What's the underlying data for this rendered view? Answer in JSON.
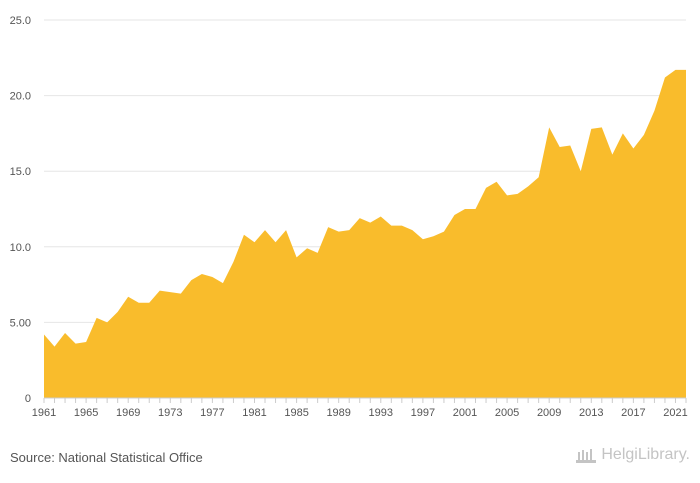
{
  "chart_data": {
    "type": "area",
    "color": "#f9bc2c",
    "x": [
      1961,
      1962,
      1963,
      1964,
      1965,
      1966,
      1967,
      1968,
      1969,
      1970,
      1971,
      1972,
      1973,
      1974,
      1975,
      1976,
      1977,
      1978,
      1979,
      1980,
      1981,
      1982,
      1983,
      1984,
      1985,
      1986,
      1987,
      1988,
      1989,
      1990,
      1991,
      1992,
      1993,
      1994,
      1995,
      1996,
      1997,
      1998,
      1999,
      2000,
      2001,
      2002,
      2003,
      2004,
      2005,
      2006,
      2007,
      2008,
      2009,
      2010,
      2011,
      2012,
      2013,
      2014,
      2015,
      2016,
      2017,
      2018,
      2019,
      2020,
      2021,
      2022
    ],
    "values": [
      4.2,
      3.4,
      4.3,
      3.6,
      3.7,
      5.3,
      5.0,
      5.7,
      6.7,
      6.3,
      6.3,
      7.1,
      7.0,
      6.9,
      7.8,
      8.2,
      8.0,
      7.6,
      9.0,
      10.8,
      10.3,
      11.1,
      10.3,
      11.1,
      9.3,
      9.9,
      9.6,
      11.3,
      11.0,
      11.1,
      11.9,
      11.6,
      12.0,
      11.4,
      11.4,
      11.1,
      10.5,
      10.7,
      11.0,
      12.1,
      12.5,
      12.5,
      13.9,
      14.3,
      13.4,
      13.5,
      14.0,
      14.6,
      17.9,
      16.6,
      16.7,
      15.0,
      17.8,
      17.9,
      16.1,
      17.5,
      16.5,
      17.4,
      19.0,
      21.2,
      21.7,
      21.7
    ],
    "ylim": [
      0,
      25
    ],
    "yticks": [
      "0",
      "5.00",
      "10.0",
      "15.0",
      "20.0",
      "25.0"
    ],
    "xtick_labels": [
      "1961",
      "1965",
      "1969",
      "1973",
      "1977",
      "1981",
      "1985",
      "1989",
      "1993",
      "1997",
      "2001",
      "2005",
      "2009",
      "2013",
      "2017",
      "2021"
    ],
    "grid": true,
    "xlabel": "",
    "ylabel": ""
  },
  "footer": {
    "source": "Source: National Statistical Office",
    "brand": "HelgiLibrary."
  }
}
